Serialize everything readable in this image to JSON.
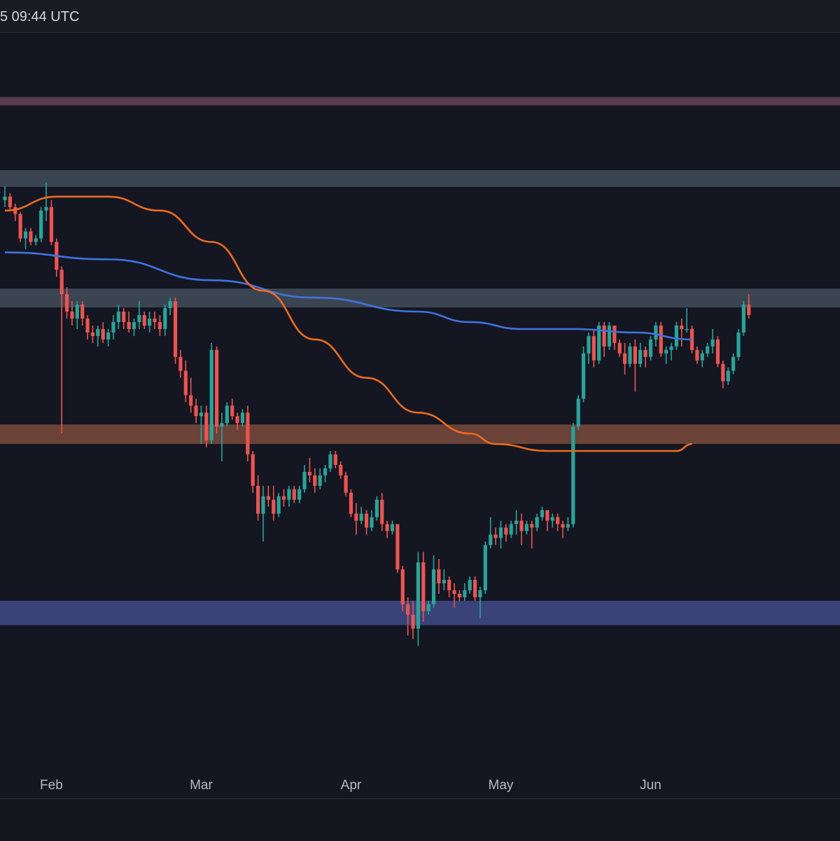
{
  "header": {
    "timestamp": "5 09:44 UTC"
  },
  "colors": {
    "background": "#141722",
    "up": "#26a69a",
    "down": "#ef5350",
    "ma_blue": "#3f73e0",
    "ma_orange": "#ee6a1f",
    "zone_top": "#5a3d52",
    "zone_grey_upper": "#3a4551",
    "zone_grey_lower": "#3a4551",
    "zone_orange": "#6a4238",
    "zone_blue": "#3a4378"
  },
  "chart_data": {
    "type": "candlestick",
    "title": "",
    "xlabel": "",
    "ylabel": "",
    "x_ticks": [
      "Feb",
      "Mar",
      "Apr",
      "May",
      "Jun"
    ],
    "x_tick_index": [
      9,
      38,
      67,
      96,
      125
    ],
    "y_range": [
      0,
      100
    ],
    "zones": [
      {
        "name": "top-resistance",
        "low": 89.6,
        "high": 90.8,
        "color": "zone_top"
      },
      {
        "name": "upper-resistance",
        "low": 77.9,
        "high": 80.3,
        "color": "zone_grey_upper"
      },
      {
        "name": "mid-resistance",
        "low": 60.6,
        "high": 63.3,
        "color": "zone_grey_lower"
      },
      {
        "name": "support-orange",
        "low": 41.0,
        "high": 43.8,
        "color": "zone_orange"
      },
      {
        "name": "support-blue",
        "low": 15.0,
        "high": 18.5,
        "color": "zone_blue"
      }
    ],
    "candles": [
      [
        76.0,
        78.0,
        75.0,
        76.5
      ],
      [
        76.5,
        77.0,
        74.5,
        75.0
      ],
      [
        75.0,
        75.5,
        73.0,
        74.0
      ],
      [
        74.0,
        74.3,
        70.0,
        70.5
      ],
      [
        70.5,
        72.0,
        69.0,
        71.5
      ],
      [
        71.5,
        72.0,
        69.5,
        70.0
      ],
      [
        70.0,
        71.0,
        69.5,
        70.5
      ],
      [
        70.5,
        75.0,
        70.0,
        74.5
      ],
      [
        74.5,
        78.5,
        73.0,
        75.0
      ],
      [
        75.0,
        76.0,
        69.5,
        70.0
      ],
      [
        70.0,
        70.5,
        65.0,
        66.0
      ],
      [
        66.0,
        66.5,
        42.5,
        62.5
      ],
      [
        62.5,
        63.5,
        59.0,
        60.0
      ],
      [
        60.0,
        61.5,
        58.0,
        59.0
      ],
      [
        59.0,
        61.5,
        57.5,
        61.0
      ],
      [
        61.0,
        61.5,
        58.0,
        59.0
      ],
      [
        59.0,
        59.5,
        56.0,
        57.0
      ],
      [
        57.0,
        58.0,
        55.5,
        56.5
      ],
      [
        56.5,
        58.0,
        55.0,
        57.5
      ],
      [
        57.5,
        58.5,
        55.5,
        56.0
      ],
      [
        56.0,
        57.5,
        55.0,
        57.0
      ],
      [
        57.0,
        59.5,
        56.0,
        58.5
      ],
      [
        58.5,
        61.0,
        57.5,
        60.0
      ],
      [
        60.0,
        60.5,
        57.5,
        58.5
      ],
      [
        58.5,
        60.0,
        57.0,
        57.5
      ],
      [
        57.5,
        59.0,
        56.5,
        58.5
      ],
      [
        58.5,
        61.5,
        57.5,
        59.5
      ],
      [
        59.5,
        60.0,
        57.5,
        58.0
      ],
      [
        58.0,
        60.0,
        57.0,
        59.0
      ],
      [
        59.0,
        60.0,
        57.5,
        58.5
      ],
      [
        58.5,
        59.5,
        56.5,
        57.5
      ],
      [
        57.5,
        61.0,
        56.5,
        60.5
      ],
      [
        60.5,
        62.0,
        59.5,
        61.5
      ],
      [
        61.5,
        62.0,
        52.5,
        53.5
      ],
      [
        53.5,
        54.5,
        50.5,
        51.5
      ],
      [
        51.5,
        53.0,
        47.0,
        48.0
      ],
      [
        48.0,
        50.5,
        45.5,
        46.5
      ],
      [
        46.5,
        47.5,
        44.0,
        45.0
      ],
      [
        45.0,
        46.5,
        41.0,
        45.5
      ],
      [
        45.5,
        46.5,
        40.5,
        41.5
      ],
      [
        41.5,
        55.5,
        41.0,
        54.5
      ],
      [
        54.5,
        55.0,
        42.5,
        43.5
      ],
      [
        43.5,
        45.5,
        38.5,
        44.0
      ],
      [
        44.0,
        47.0,
        43.5,
        46.5
      ],
      [
        46.5,
        47.5,
        44.5,
        45.0
      ],
      [
        45.0,
        45.5,
        43.0,
        44.0
      ],
      [
        44.0,
        46.0,
        43.5,
        45.5
      ],
      [
        45.5,
        46.5,
        38.5,
        39.5
      ],
      [
        39.5,
        40.0,
        34.0,
        35.0
      ],
      [
        35.0,
        36.5,
        30.0,
        31.0
      ],
      [
        31.0,
        35.0,
        27.0,
        33.5
      ],
      [
        33.5,
        35.0,
        32.0,
        33.0
      ],
      [
        33.0,
        35.0,
        30.0,
        31.0
      ],
      [
        31.0,
        34.0,
        30.5,
        33.5
      ],
      [
        33.5,
        34.5,
        32.0,
        33.0
      ],
      [
        33.0,
        35.0,
        32.0,
        34.5
      ],
      [
        34.5,
        35.0,
        32.5,
        33.0
      ],
      [
        33.0,
        35.0,
        32.5,
        34.5
      ],
      [
        34.5,
        38.0,
        34.0,
        37.0
      ],
      [
        37.0,
        39.0,
        35.5,
        36.5
      ],
      [
        36.5,
        37.5,
        34.0,
        35.0
      ],
      [
        35.0,
        37.5,
        34.5,
        36.5
      ],
      [
        36.5,
        38.0,
        35.5,
        37.5
      ],
      [
        37.5,
        40.0,
        37.0,
        39.5
      ],
      [
        39.5,
        40.0,
        37.5,
        38.0
      ],
      [
        38.0,
        38.5,
        36.0,
        36.5
      ],
      [
        36.5,
        37.0,
        33.5,
        34.0
      ],
      [
        34.0,
        34.5,
        30.5,
        31.0
      ],
      [
        31.0,
        32.5,
        28.0,
        30.0
      ],
      [
        30.0,
        32.0,
        29.5,
        31.0
      ],
      [
        31.0,
        31.5,
        28.0,
        29.0
      ],
      [
        29.0,
        31.5,
        28.5,
        30.5
      ],
      [
        30.5,
        33.5,
        30.0,
        33.0
      ],
      [
        33.0,
        34.0,
        28.5,
        29.5
      ],
      [
        29.5,
        30.0,
        27.5,
        28.5
      ],
      [
        28.5,
        30.0,
        28.0,
        29.5
      ],
      [
        29.5,
        29.5,
        22.5,
        23.0
      ],
      [
        23.0,
        23.5,
        17.0,
        18.0
      ],
      [
        18.0,
        19.0,
        13.5,
        16.5
      ],
      [
        16.5,
        18.5,
        13.0,
        14.5
      ],
      [
        14.5,
        25.5,
        12.0,
        24.0
      ],
      [
        24.0,
        25.5,
        15.5,
        17.0
      ],
      [
        17.0,
        18.5,
        16.5,
        18.0
      ],
      [
        18.0,
        25.0,
        17.5,
        23.0
      ],
      [
        23.0,
        24.5,
        19.5,
        21.0
      ],
      [
        21.0,
        23.0,
        20.0,
        21.5
      ],
      [
        21.5,
        22.0,
        19.0,
        20.0
      ],
      [
        20.0,
        21.0,
        17.5,
        19.5
      ],
      [
        19.5,
        20.0,
        18.5,
        19.0
      ],
      [
        19.0,
        21.0,
        18.5,
        20.0
      ],
      [
        20.0,
        22.0,
        19.5,
        21.5
      ],
      [
        21.5,
        22.0,
        18.5,
        19.0
      ],
      [
        19.0,
        20.5,
        16.0,
        20.0
      ],
      [
        20.0,
        27.0,
        19.5,
        26.5
      ],
      [
        26.5,
        30.5,
        26.0,
        28.0
      ],
      [
        28.0,
        29.0,
        26.5,
        27.5
      ],
      [
        27.5,
        30.0,
        26.0,
        29.0
      ],
      [
        29.0,
        29.5,
        27.0,
        28.0
      ],
      [
        28.0,
        30.0,
        27.5,
        29.5
      ],
      [
        29.5,
        31.5,
        28.0,
        30.0
      ],
      [
        30.0,
        31.0,
        26.5,
        28.5
      ],
      [
        28.5,
        30.0,
        28.0,
        29.5
      ],
      [
        29.5,
        30.0,
        26.0,
        29.0
      ],
      [
        29.0,
        31.0,
        28.5,
        30.5
      ],
      [
        30.5,
        32.0,
        30.0,
        31.5
      ],
      [
        31.5,
        31.5,
        28.5,
        30.0
      ],
      [
        30.0,
        31.0,
        29.0,
        30.5
      ],
      [
        30.5,
        31.0,
        28.5,
        29.5
      ],
      [
        29.5,
        30.0,
        27.5,
        29.0
      ],
      [
        29.0,
        30.5,
        28.5,
        29.5
      ],
      [
        29.5,
        44.0,
        29.0,
        43.5
      ],
      [
        43.5,
        48.0,
        43.0,
        47.5
      ],
      [
        47.5,
        55.0,
        47.0,
        54.0
      ],
      [
        54.0,
        57.0,
        52.5,
        56.5
      ],
      [
        56.5,
        57.5,
        52.0,
        53.0
      ],
      [
        53.0,
        58.5,
        52.5,
        58.0
      ],
      [
        58.0,
        58.5,
        53.5,
        55.0
      ],
      [
        55.0,
        58.5,
        54.5,
        58.0
      ],
      [
        58.0,
        58.0,
        54.5,
        55.5
      ],
      [
        55.5,
        56.0,
        53.5,
        54.0
      ],
      [
        54.0,
        55.5,
        51.0,
        52.5
      ],
      [
        52.5,
        55.5,
        52.0,
        55.0
      ],
      [
        55.0,
        56.0,
        48.5,
        52.5
      ],
      [
        52.5,
        55.5,
        52.0,
        54.5
      ],
      [
        54.5,
        55.0,
        52.0,
        53.5
      ],
      [
        53.5,
        56.5,
        53.0,
        56.0
      ],
      [
        56.0,
        58.5,
        55.0,
        58.0
      ],
      [
        58.0,
        58.5,
        53.5,
        54.0
      ],
      [
        54.0,
        55.0,
        52.5,
        54.5
      ],
      [
        54.5,
        55.5,
        53.0,
        55.0
      ],
      [
        55.0,
        58.5,
        54.5,
        58.0
      ],
      [
        58.0,
        59.0,
        55.0,
        57.5
      ],
      [
        57.5,
        60.5,
        57.0,
        57.5
      ],
      [
        57.5,
        58.0,
        54.0,
        54.5
      ],
      [
        54.5,
        55.0,
        52.5,
        53.0
      ],
      [
        53.0,
        54.5,
        52.0,
        54.0
      ],
      [
        54.0,
        55.5,
        53.5,
        55.0
      ],
      [
        55.0,
        57.5,
        54.0,
        56.0
      ],
      [
        56.0,
        56.5,
        52.0,
        52.5
      ],
      [
        52.5,
        53.0,
        49.0,
        50.0
      ],
      [
        50.0,
        52.0,
        49.5,
        51.5
      ],
      [
        51.5,
        54.0,
        51.0,
        53.5
      ],
      [
        53.5,
        57.5,
        53.0,
        57.0
      ],
      [
        57.0,
        61.5,
        56.5,
        61.0
      ],
      [
        61.0,
        62.5,
        59.0,
        59.5
      ]
    ],
    "moving_averages": [
      {
        "name": "",
        "color": "ma_blue",
        "points": [
          [
            0,
            68.5
          ],
          [
            20,
            67.5
          ],
          [
            40,
            64.5
          ],
          [
            60,
            62.0
          ],
          [
            80,
            60.0
          ],
          [
            90,
            58.5
          ],
          [
            100,
            57.5
          ],
          [
            110,
            57.5
          ],
          [
            122,
            57.0
          ],
          [
            133,
            56.0
          ]
        ]
      },
      {
        "name": "",
        "color": "ma_orange",
        "points": [
          [
            0,
            74.5
          ],
          [
            10,
            76.5
          ],
          [
            20,
            76.5
          ],
          [
            30,
            74.5
          ],
          [
            40,
            70.0
          ],
          [
            50,
            63.0
          ],
          [
            60,
            56.0
          ],
          [
            70,
            50.5
          ],
          [
            80,
            45.5
          ],
          [
            90,
            42.5
          ],
          [
            95,
            41.0
          ],
          [
            105,
            40.0
          ],
          [
            118,
            40.0
          ],
          [
            130,
            40.0
          ],
          [
            133,
            41.0
          ]
        ]
      }
    ]
  }
}
